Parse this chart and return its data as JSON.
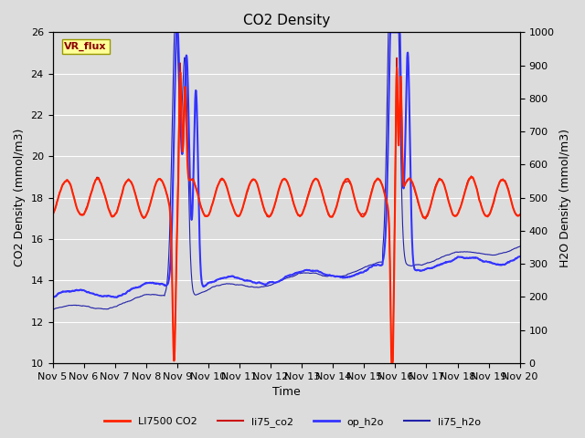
{
  "title": "CO2 Density",
  "xlabel": "Time",
  "ylabel_left": "CO2 Density (mmol/m3)",
  "ylabel_right": "H2O Density (mmol/m3)",
  "ylim_left": [
    10,
    26
  ],
  "ylim_right": [
    0,
    1000
  ],
  "yticks_left": [
    10,
    12,
    14,
    16,
    18,
    20,
    22,
    24,
    26
  ],
  "yticks_right": [
    0,
    100,
    200,
    300,
    400,
    500,
    600,
    700,
    800,
    900,
    1000
  ],
  "xtick_labels": [
    "Nov 5",
    "Nov 6",
    "Nov 7",
    "Nov 8",
    "Nov 9",
    "Nov 10",
    "Nov 11",
    "Nov 12",
    "Nov 13",
    "Nov 14",
    "Nov 15",
    "Nov 16",
    "Nov 17",
    "Nov 18",
    "Nov 19",
    "Nov 20"
  ],
  "color_li7500": "#ff2200",
  "color_li75co2": "#cc1111",
  "color_opH2o": "#3333ff",
  "color_li75h2o": "#2222aa",
  "lw_thick": 1.5,
  "lw_thin": 0.8,
  "bg_color": "#dcdcdc",
  "plot_bg_color": "#dcdcdc",
  "grid_color": "#ffffff",
  "vr_flux_box_color": "#ffff99",
  "vr_flux_text_color": "#8b0000",
  "title_fontsize": 11,
  "axis_label_fontsize": 9,
  "tick_fontsize": 8,
  "legend_fontsize": 8
}
